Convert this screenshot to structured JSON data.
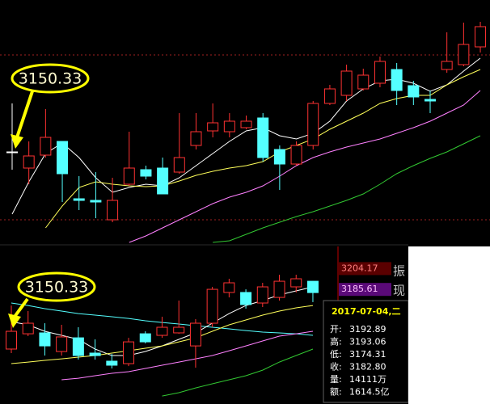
{
  "chart_data": [
    {
      "type": "candlestick",
      "ylim": [
        3090,
        3240
      ],
      "up_color": "#ff3232",
      "down_color": "#54ffff",
      "flat_color": "#ffffff",
      "open": [
        3146,
        3136,
        3144,
        3152.5,
        3117,
        3116,
        3104,
        3126,
        3135,
        3136,
        3133.5,
        3150,
        3159,
        3158.5,
        3161,
        3167,
        3147.5,
        3138.5,
        3150,
        3176,
        3181,
        3185,
        3188.5,
        3197,
        3187,
        3178.5,
        3197,
        3200,
        3211
      ],
      "close": [
        3146,
        3143.5,
        3155,
        3132.5,
        3116,
        3115,
        3116,
        3136,
        3131,
        3120,
        3142.5,
        3158.5,
        3164,
        3165,
        3165,
        3142.5,
        3138.5,
        3150,
        3176,
        3185,
        3196,
        3193.5,
        3202,
        3184,
        3180,
        3177.5,
        3202,
        3212.5,
        3223.5
      ],
      "high": [
        3176,
        3152.5,
        3172.5,
        3152.5,
        3131,
        3133.5,
        3130,
        3158.5,
        3137.5,
        3142.5,
        3170,
        3170,
        3176,
        3170,
        3168.5,
        3170,
        3150,
        3152.5,
        3177.5,
        3187.5,
        3200,
        3197.5,
        3205,
        3201,
        3190,
        3184,
        3220,
        3226,
        3226.5
      ],
      "low": [
        3135,
        3126,
        3142.5,
        3115,
        3110,
        3105,
        3102.5,
        3125,
        3129,
        3120,
        3132.5,
        3147.5,
        3155,
        3155,
        3160,
        3140,
        3122.5,
        3137.5,
        3147.5,
        3175,
        3177.5,
        3184,
        3186,
        3175,
        3175,
        3170,
        3195,
        3199,
        3207.5
      ],
      "series": [
        {
          "color": "#ffffff",
          "values": [
            3107.5,
            3127.5,
            3145,
            3151.5,
            3142.5,
            3130,
            3121,
            3124,
            3126,
            3125,
            3130,
            3137.5,
            3145,
            3152.5,
            3159,
            3161,
            3156,
            3154,
            3157.5,
            3165,
            3177.5,
            3185,
            3190,
            3191,
            3188.5,
            3183.5,
            3187.5,
            3196,
            3204
          ]
        },
        {
          "color": "#ffff5a",
          "values": [
            null,
            null,
            3099,
            3112.5,
            3124,
            3127.5,
            3126,
            3125,
            3124.5,
            3125,
            3128,
            3131.5,
            3134,
            3136,
            3137.5,
            3140,
            3146,
            3150,
            3154,
            3160,
            3165,
            3170,
            3176,
            3179,
            3181,
            3181,
            3187.5,
            3192.5,
            3197
          ]
        },
        {
          "color": "#ff80ff",
          "values": [
            null,
            null,
            null,
            null,
            null,
            null,
            null,
            3090,
            3094,
            3099,
            3104,
            3109,
            3114,
            3118,
            3121,
            3125,
            3131,
            3137.5,
            3142.5,
            3146,
            3149,
            3151.5,
            3154,
            3157.5,
            3161,
            3165,
            3170,
            3175,
            3184
          ]
        },
        {
          "color": "#32c832",
          "values": [
            null,
            null,
            null,
            null,
            null,
            null,
            null,
            null,
            null,
            null,
            null,
            null,
            3090,
            3091,
            3095,
            3099,
            3102.5,
            3106,
            3109,
            3112.5,
            3116,
            3120,
            3126,
            3132.5,
            3137.5,
            3142,
            3146,
            3151,
            3156
          ]
        }
      ],
      "hlines": [
        3206,
        3104
      ],
      "hline_color": "#a02020",
      "annotation": "3150.33"
    },
    {
      "type": "candlestick",
      "ylim": [
        3085.7,
        3223.9
      ],
      "up_color": "#ff3232",
      "down_color": "#54ffff",
      "flat_color": "#ffffff",
      "open": [
        3132.5,
        3146.1,
        3146.9,
        3130.3,
        3142.5,
        3128.9,
        3121.7,
        3119.5,
        3146.1,
        3144.7,
        3146.9,
        3135.3,
        3155.5,
        3182.9,
        3182.9,
        3173.5,
        3178.5,
        3187.9,
        3192.89
      ],
      "close": [
        3148.3,
        3155.5,
        3135.3,
        3143.3,
        3126.7,
        3126.7,
        3118.1,
        3138.9,
        3138.9,
        3151.9,
        3151.9,
        3155.5,
        3185.7,
        3191.5,
        3172.1,
        3187.9,
        3192.9,
        3195.1,
        3182.8
      ],
      "high": [
        3171.3,
        3166.3,
        3155.5,
        3154.1,
        3151.9,
        3141.1,
        3128.1,
        3142.5,
        3148.3,
        3161.3,
        3175.7,
        3159.1,
        3187.9,
        3195.1,
        3185.7,
        3191.5,
        3198.7,
        3198.7,
        3193.06
      ],
      "low": [
        3128.9,
        3144,
        3126.7,
        3126.7,
        3123.1,
        3123.1,
        3115.2,
        3117.3,
        3137.5,
        3142.5,
        3146.1,
        3115.9,
        3151.9,
        3178.5,
        3168.5,
        3169.9,
        3175.7,
        3182.9,
        3174.31
      ],
      "series": [
        {
          "color": "#54ffff",
          "values": [
            3173.5,
            3171.3,
            3168.5,
            3166.3,
            3164.1,
            3162.7,
            3161.3,
            3159.8,
            3157.7,
            3156.2,
            3154.8,
            3153.3,
            3151.9,
            3150.5,
            3149,
            3147.6,
            3146.9,
            3146.1,
            3144.7
          ]
        },
        {
          "color": "#ffffff",
          "values": [
            3156.9,
            3154.1,
            3148.3,
            3144.7,
            3141.1,
            3132.5,
            3126.7,
            3126.7,
            3130.3,
            3135.3,
            3141.1,
            3146.9,
            3155.5,
            3164.1,
            3171.3,
            3175.7,
            3180.7,
            3184.3,
            3187.9
          ]
        },
        {
          "color": "#ffff5a",
          "values": [
            3119.5,
            3120.9,
            3122.4,
            3123.8,
            3125.3,
            3126.7,
            3128.9,
            3131,
            3133.2,
            3135.3,
            3138.9,
            3142.5,
            3148.3,
            3154.1,
            3158.4,
            3162.7,
            3166.3,
            3169.2,
            3171.3
          ]
        },
        {
          "color": "#ff80ff",
          "values": [
            null,
            null,
            null,
            3105.1,
            3106.5,
            3108.7,
            3110.9,
            3112.3,
            3115.2,
            3118.1,
            3120.9,
            3123.8,
            3126.7,
            3131,
            3135.3,
            3139.7,
            3144,
            3146.1,
            3148.3
          ]
        },
        {
          "color": "#32c832",
          "values": [
            null,
            null,
            null,
            null,
            null,
            null,
            null,
            null,
            null,
            3090.7,
            3093.6,
            3097.9,
            3101.5,
            3105.1,
            3108.7,
            3113.7,
            3120.9,
            3126.7,
            3132.5
          ]
        }
      ],
      "price_labels": [
        {
          "value": 3204.17,
          "color": "#ff8080",
          "background": "#5a0000"
        },
        {
          "value": 3185.61,
          "color": "#ffc0ff",
          "background": "#5a0a78"
        }
      ],
      "annotation": "3150.33"
    }
  ],
  "side_text": [
    "振",
    "现"
  ],
  "tooltip": {
    "date": "2017-07-04,二",
    "rows": [
      [
        "开:",
        "3192.89"
      ],
      [
        "高:",
        "3193.06"
      ],
      [
        "低:",
        "3174.31"
      ],
      [
        "收:",
        "3182.80"
      ],
      [
        "量:",
        "14111万"
      ],
      [
        "额:",
        "1614.5亿"
      ]
    ]
  }
}
